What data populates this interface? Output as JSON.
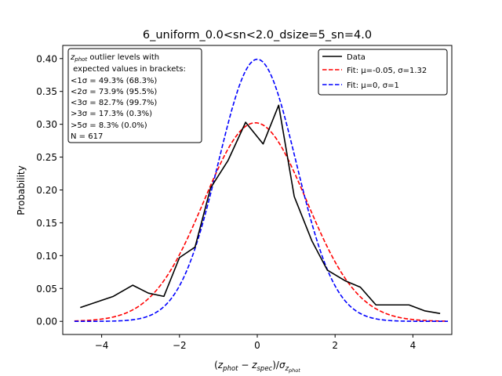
{
  "chart_data": {
    "type": "line",
    "title": "6_uniform_0.0<sn<2.0_dsize=5_sn=4.0",
    "xlabel": "(z_phot − z_spec)/σ_z_phot",
    "ylabel": "Probability",
    "xlim": [
      -5.0,
      5.0
    ],
    "ylim": [
      -0.02,
      0.42
    ],
    "xticks": [
      -4,
      -2,
      0,
      2,
      4
    ],
    "xtick_labels": [
      "−4",
      "−2",
      "0",
      "2",
      "4"
    ],
    "yticks": [
      0.0,
      0.05,
      0.1,
      0.15,
      0.2,
      0.25,
      0.3,
      0.35,
      0.4
    ],
    "ytick_labels": [
      "0.00",
      "0.05",
      "0.10",
      "0.15",
      "0.20",
      "0.25",
      "0.30",
      "0.35",
      "0.40"
    ],
    "grid": false,
    "legend_position": "top-right",
    "series": [
      {
        "name": "Data",
        "color": "#000000",
        "style": "solid",
        "x": [
          -4.55,
          -3.7,
          -3.2,
          -2.8,
          -2.4,
          -2.0,
          -1.6,
          -1.2,
          -0.75,
          -0.3,
          0.15,
          0.55,
          0.95,
          1.4,
          1.8,
          2.25,
          2.65,
          3.05,
          3.9,
          4.3,
          4.7
        ],
        "y": [
          0.021,
          0.038,
          0.055,
          0.043,
          0.038,
          0.097,
          0.113,
          0.203,
          0.245,
          0.303,
          0.27,
          0.329,
          0.19,
          0.123,
          0.078,
          0.062,
          0.052,
          0.025,
          0.025,
          0.016,
          0.012
        ]
      },
      {
        "name": "Fit: μ=-0.05, σ=1.32",
        "color": "#ff0000",
        "style": "dashed",
        "mu": -0.05,
        "sigma": 1.32
      },
      {
        "name": "Fit: μ=0, σ=1",
        "color": "#0000ff",
        "style": "dashed",
        "mu": 0,
        "sigma": 1
      }
    ],
    "annotation": {
      "lines": [
        "z_phot outlier levels with",
        " expected values in brackets:",
        "<1σ = 49.3% (68.3%)",
        "<2σ = 73.9% (95.5%)",
        "<3σ = 82.7% (99.7%)",
        ">3σ = 17.3% (0.3%)",
        ">5σ = 8.3% (0.0%)",
        "N = 617"
      ]
    }
  }
}
